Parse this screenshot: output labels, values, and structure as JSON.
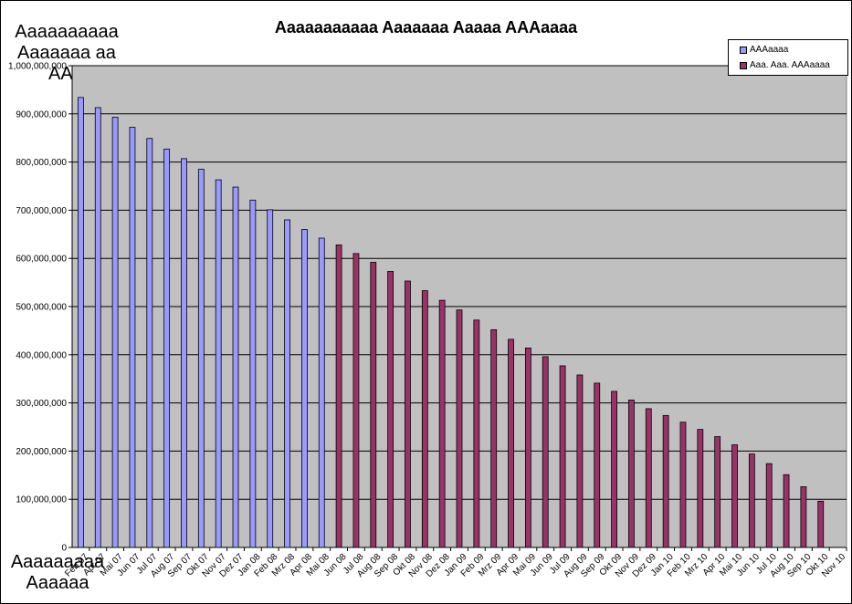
{
  "chart_data": {
    "type": "bar",
    "title": "Aaaaaaaaaaa Aaaaaaa Aaaaa AAAaaaa",
    "ylabel": "Aaaaaaaaaa Aaaaaaa aa AAA",
    "xlabel": "Aaaaaaaaa Aaaaaa",
    "ylim": [
      0,
      1000000000
    ],
    "yticks": [
      "0",
      "100,000,000",
      "200,000,000",
      "300,000,000",
      "400,000,000",
      "500,000,000",
      "600,000,000",
      "700,000,000",
      "800,000,000",
      "900,000,000",
      "1,000,000,000"
    ],
    "grid": true,
    "legend_position": "top-right",
    "categories": [
      "Feb 07",
      "Apr 07",
      "Mai 07",
      "Jun 07",
      "Jul 07",
      "Aug 07",
      "Sep 07",
      "Okt 07",
      "Nov 07",
      "Dez 07",
      "Jan 08",
      "Feb 08",
      "Mrz 08",
      "Apr 08",
      "Mai 08",
      "Jun 08",
      "Jul 08",
      "Aug 08",
      "Sep 08",
      "Okt 08",
      "Nov 08",
      "Dez 08",
      "Jan 09",
      "Feb 09",
      "Mrz 09",
      "Apr 09",
      "Mai 09",
      "Jun 09",
      "Jul 09",
      "Aug 09",
      "Sep 09",
      "Okt 09",
      "Nov 09",
      "Dez 09",
      "Jan 10",
      "Feb 10",
      "Mrz 10",
      "Apr 10",
      "Mai 10",
      "Jun 10",
      "Jul 10",
      "Aug 10",
      "Sep 10",
      "Okt 10",
      "Nov 10"
    ],
    "series": [
      {
        "name": "AAAaaaa",
        "color": "#9999ff",
        "values": [
          934000000,
          913000000,
          893000000,
          872000000,
          849000000,
          827000000,
          807000000,
          785000000,
          763000000,
          748000000,
          721000000,
          701000000,
          680000000,
          660000000,
          642000000,
          null,
          null,
          null,
          null,
          null,
          null,
          null,
          null,
          null,
          null,
          null,
          null,
          null,
          null,
          null,
          null,
          null,
          null,
          null,
          null,
          null,
          null,
          null,
          null,
          null,
          null,
          null,
          null,
          null,
          null
        ]
      },
      {
        "name": "Aaa. Aaa. AAAaaaa",
        "color": "#993366",
        "values": [
          null,
          null,
          null,
          null,
          null,
          null,
          null,
          null,
          null,
          null,
          null,
          null,
          null,
          null,
          null,
          628000000,
          610000000,
          592000000,
          573000000,
          553000000,
          533000000,
          513000000,
          493000000,
          472000000,
          452000000,
          432000000,
          414000000,
          396000000,
          377000000,
          358000000,
          341000000,
          324000000,
          306000000,
          288000000,
          274000000,
          260000000,
          245000000,
          230000000,
          213000000,
          194000000,
          174000000,
          151000000,
          126000000,
          96000000,
          null
        ]
      }
    ],
    "plot_background": "#c0c0c0"
  }
}
